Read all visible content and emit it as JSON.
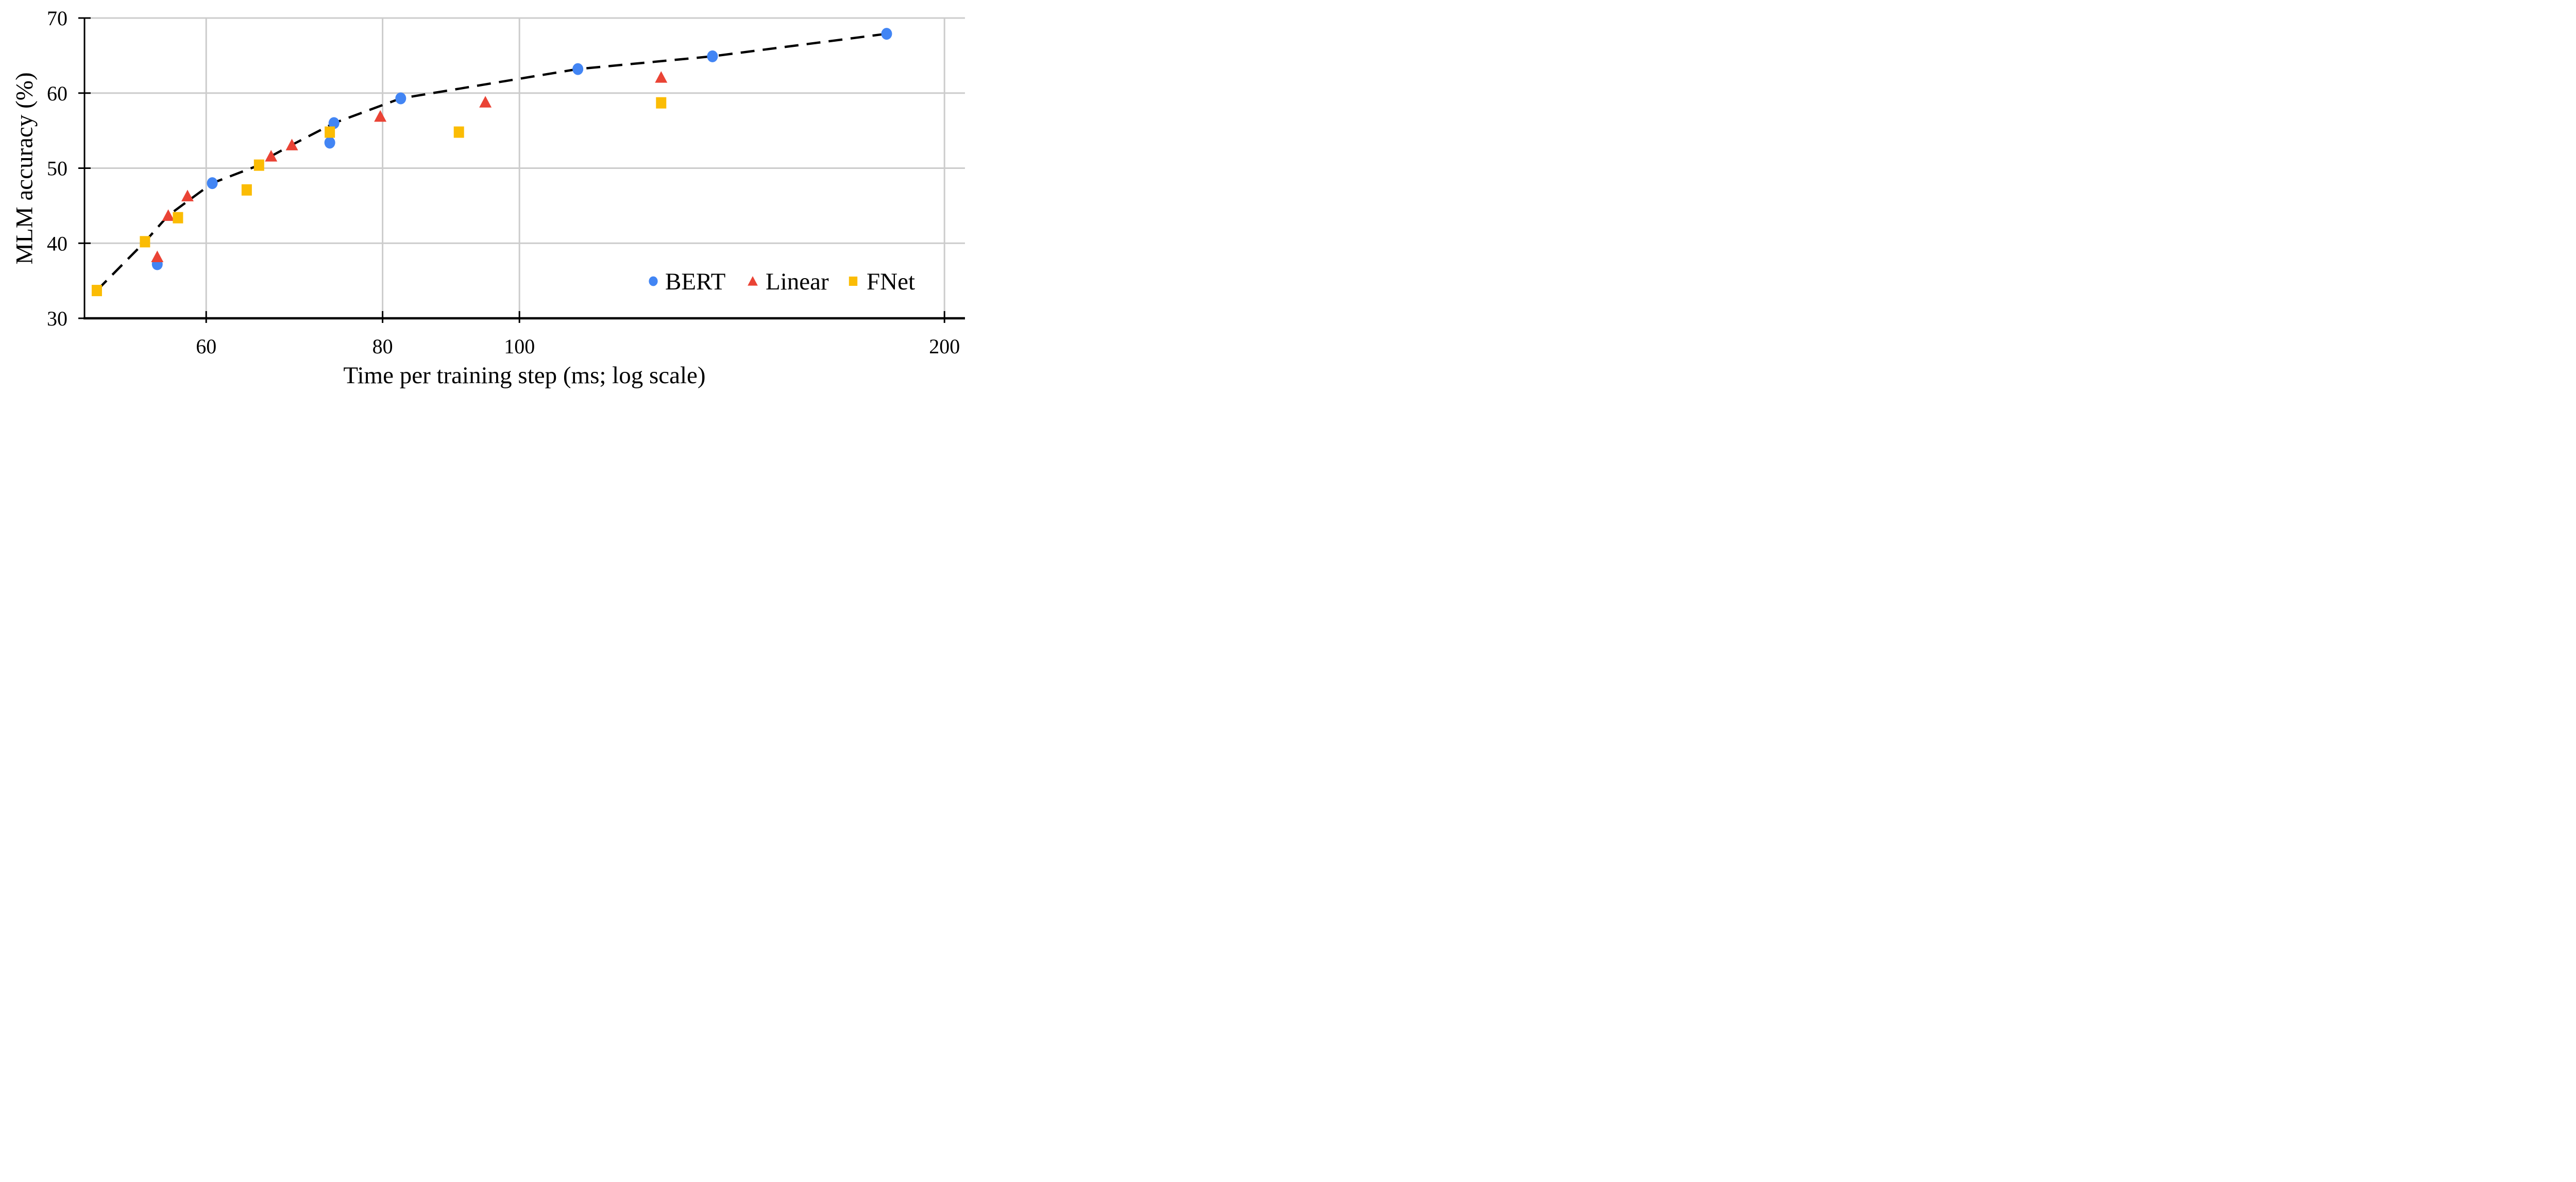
{
  "figure": {
    "x_axis_title": "Time per training step (ms; log scale)",
    "y_axis_title": "MLM accuracy (%)"
  },
  "chart_data": {
    "type": "scatter",
    "title": "",
    "xlabel": "Time per training step (ms; log scale)",
    "ylabel": "MLM accuracy (%)",
    "xscale": "log",
    "xlim": [
      49.2,
      206.8
    ],
    "ylim": [
      30,
      70
    ],
    "xticks": [
      60,
      80,
      100,
      200
    ],
    "xtick_labels": [
      "60",
      "80",
      "100",
      "200"
    ],
    "yticks": [
      30,
      40,
      50,
      60,
      70
    ],
    "ytick_labels": [
      "30",
      "40",
      "50",
      "60",
      "70"
    ],
    "grid": true,
    "gridline_color": "#cccccc",
    "axis_color": "#000000",
    "legend_position": "inside lower right",
    "series": [
      {
        "name": "BERT",
        "marker": "circle",
        "color": "#4285F4",
        "points": [
          [
            55.4,
            37.2
          ],
          [
            60.6,
            48.0
          ],
          [
            73.4,
            53.4
          ],
          [
            73.9,
            56.0
          ],
          [
            82.4,
            59.3
          ],
          [
            110.0,
            63.2
          ],
          [
            137.0,
            64.9
          ],
          [
            182.0,
            67.9
          ]
        ]
      },
      {
        "name": "Linear",
        "marker": "triangle",
        "color": "#EA4335",
        "points": [
          [
            55.4,
            38.2
          ],
          [
            56.4,
            43.7
          ],
          [
            58.2,
            46.3
          ],
          [
            66.7,
            51.6
          ],
          [
            69.0,
            53.1
          ],
          [
            79.7,
            56.9
          ],
          [
            94.6,
            58.8
          ],
          [
            126.0,
            62.1
          ]
        ]
      },
      {
        "name": "FNet",
        "marker": "square",
        "color": "#FBBC04",
        "points": [
          [
            50.2,
            33.7
          ],
          [
            54.3,
            40.2
          ],
          [
            57.3,
            43.4
          ],
          [
            64.1,
            47.1
          ],
          [
            65.4,
            50.4
          ],
          [
            73.4,
            54.8
          ],
          [
            90.6,
            54.8
          ],
          [
            126.0,
            58.7
          ]
        ]
      }
    ],
    "pareto_frontier_dashed_line": {
      "color": "#000000",
      "style": "dashed",
      "points": [
        [
          50.2,
          33.7
        ],
        [
          54.3,
          40.2
        ],
        [
          56.4,
          43.7
        ],
        [
          60.6,
          48.0
        ],
        [
          65.4,
          50.4
        ],
        [
          66.7,
          51.6
        ],
        [
          69.0,
          53.1
        ],
        [
          73.9,
          56.0
        ],
        [
          82.4,
          59.3
        ],
        [
          110.0,
          63.2
        ],
        [
          137.0,
          64.9
        ],
        [
          182.0,
          67.9
        ]
      ]
    }
  }
}
